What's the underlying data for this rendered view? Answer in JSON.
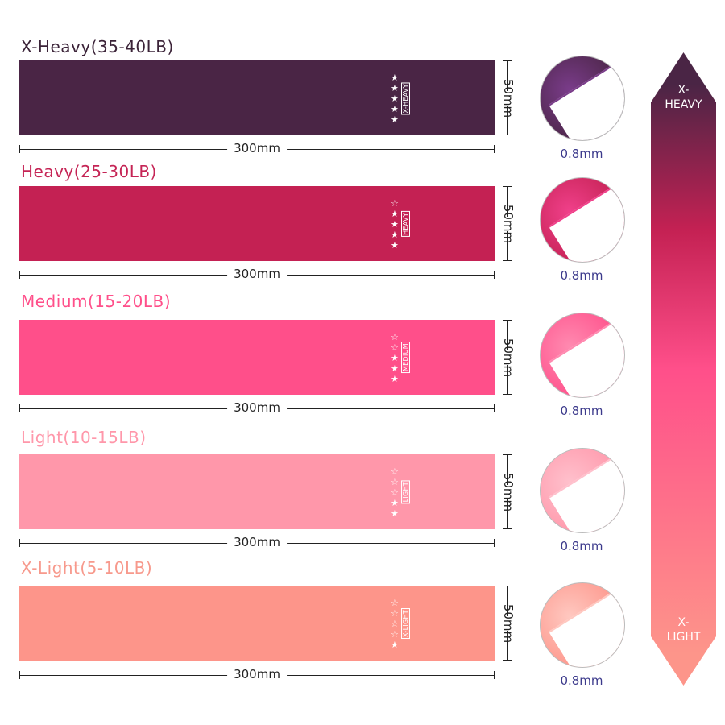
{
  "bands": [
    {
      "title": "X-Heavy(35-40LB)",
      "level": "X-HEAVY",
      "stars_filled": 5,
      "stars_total": 5,
      "length": "300mm",
      "width": "50mm",
      "thickness": "0.8mm",
      "color": "#4a2545",
      "title_color": "#3b2338",
      "light": "#7a3c8a"
    },
    {
      "title": "Heavy(25-30LB)",
      "level": "HEAVY",
      "stars_filled": 4,
      "stars_total": 5,
      "length": "300mm",
      "width": "50mm",
      "thickness": "0.8mm",
      "color": "#c42153",
      "title_color": "#c52455",
      "light": "#f0408a"
    },
    {
      "title": "Medium(15-20LB)",
      "level": "MEDIUM",
      "stars_filled": 3,
      "stars_total": 5,
      "length": "300mm",
      "width": "50mm",
      "thickness": "0.8mm",
      "color": "#ff4f8a",
      "title_color": "#ff4f8a",
      "light": "#ff8ab0"
    },
    {
      "title": "Light(10-15LB)",
      "level": "LIGHT",
      "stars_filled": 2,
      "stars_total": 5,
      "length": "300mm",
      "width": "50mm",
      "thickness": "0.8mm",
      "color": "#ff97aa",
      "title_color": "#ff97aa",
      "light": "#ffc0cc"
    },
    {
      "title": "X-Light(5-10LB)",
      "level": "X-LIGHT",
      "stars_filled": 1,
      "stars_total": 5,
      "length": "300mm",
      "width": "50mm",
      "thickness": "0.8mm",
      "color": "#fd958a",
      "title_color": "#f7998c",
      "light": "#ffc8c0"
    }
  ],
  "scale": {
    "top_label": "X-\nHEAVY",
    "bottom_label": "X-\nLIGHT",
    "top_color": "#4a2545",
    "mid_color": "#ff4f8a",
    "bottom_color": "#fd958a"
  }
}
